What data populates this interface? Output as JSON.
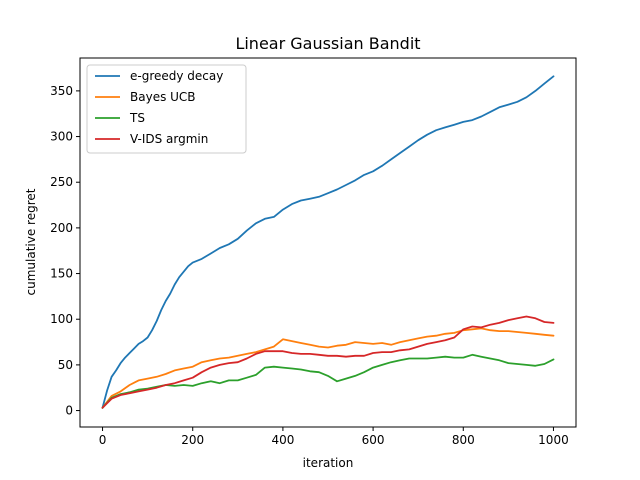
{
  "chart_data": {
    "type": "line",
    "title": "Linear Gaussian Bandit",
    "xlabel": "iteration",
    "ylabel": "cumulative regret",
    "xlim": [
      -50,
      1050
    ],
    "ylim": [
      -18,
      386
    ],
    "xticks": [
      0,
      200,
      400,
      600,
      800,
      1000
    ],
    "yticks": [
      0,
      50,
      100,
      150,
      200,
      250,
      300,
      350
    ],
    "grid": false,
    "legend_position": "top-left",
    "series": [
      {
        "name": "e-greedy decay",
        "color": "#1f77b4",
        "x": [
          0,
          10,
          20,
          30,
          40,
          50,
          60,
          70,
          80,
          90,
          100,
          110,
          120,
          130,
          140,
          150,
          160,
          170,
          180,
          190,
          200,
          220,
          240,
          260,
          280,
          300,
          320,
          340,
          360,
          380,
          400,
          420,
          440,
          460,
          480,
          500,
          520,
          540,
          560,
          580,
          600,
          620,
          640,
          660,
          680,
          700,
          720,
          740,
          760,
          780,
          800,
          820,
          840,
          860,
          880,
          900,
          920,
          940,
          960,
          980,
          1000
        ],
        "y": [
          3,
          22,
          37,
          44,
          52,
          58,
          63,
          68,
          73,
          76,
          80,
          88,
          98,
          110,
          120,
          128,
          138,
          146,
          152,
          158,
          162,
          166,
          172,
          178,
          182,
          188,
          197,
          205,
          210,
          212,
          220,
          226,
          230,
          232,
          234,
          238,
          242,
          247,
          252,
          258,
          262,
          268,
          275,
          282,
          289,
          296,
          302,
          307,
          310,
          313,
          316,
          318,
          322,
          327,
          332,
          335,
          338,
          343,
          350,
          358,
          366
        ]
      },
      {
        "name": "Bayes UCB",
        "color": "#ff7f0e",
        "x": [
          0,
          20,
          40,
          60,
          80,
          100,
          120,
          140,
          160,
          180,
          200,
          220,
          240,
          260,
          280,
          300,
          320,
          340,
          360,
          380,
          400,
          420,
          440,
          460,
          480,
          500,
          520,
          540,
          560,
          580,
          600,
          620,
          640,
          660,
          680,
          700,
          720,
          740,
          760,
          780,
          800,
          820,
          840,
          860,
          880,
          900,
          920,
          940,
          960,
          980,
          1000
        ],
        "y": [
          3,
          16,
          21,
          28,
          33,
          35,
          37,
          40,
          44,
          46,
          48,
          53,
          55,
          57,
          58,
          60,
          62,
          64,
          67,
          70,
          78,
          76,
          74,
          72,
          70,
          69,
          71,
          72,
          75,
          74,
          73,
          74,
          72,
          75,
          77,
          79,
          81,
          82,
          84,
          85,
          88,
          89,
          90,
          88,
          87,
          87,
          86,
          85,
          84,
          83,
          82
        ]
      },
      {
        "name": "TS",
        "color": "#2ca02c",
        "x": [
          0,
          20,
          40,
          60,
          80,
          100,
          120,
          140,
          160,
          180,
          200,
          220,
          240,
          260,
          280,
          300,
          320,
          340,
          360,
          380,
          400,
          420,
          440,
          460,
          480,
          500,
          520,
          540,
          560,
          580,
          600,
          620,
          640,
          660,
          680,
          700,
          720,
          740,
          760,
          780,
          800,
          820,
          840,
          860,
          880,
          900,
          920,
          940,
          960,
          980,
          1000
        ],
        "y": [
          3,
          14,
          18,
          20,
          23,
          24,
          26,
          28,
          27,
          28,
          27,
          30,
          32,
          30,
          33,
          33,
          36,
          39,
          47,
          48,
          47,
          46,
          45,
          43,
          42,
          38,
          32,
          35,
          38,
          42,
          47,
          50,
          53,
          55,
          57,
          57,
          57,
          58,
          59,
          58,
          58,
          61,
          59,
          57,
          55,
          52,
          51,
          50,
          49,
          51,
          56
        ]
      },
      {
        "name": "V-IDS argmin",
        "color": "#d62728",
        "x": [
          0,
          20,
          40,
          60,
          80,
          100,
          120,
          140,
          160,
          180,
          200,
          220,
          240,
          260,
          280,
          300,
          320,
          340,
          360,
          380,
          400,
          420,
          440,
          460,
          480,
          500,
          520,
          540,
          560,
          580,
          600,
          620,
          640,
          660,
          680,
          700,
          720,
          740,
          760,
          780,
          800,
          820,
          840,
          860,
          880,
          900,
          920,
          940,
          960,
          980,
          1000
        ],
        "y": [
          3,
          13,
          17,
          19,
          21,
          23,
          25,
          28,
          30,
          33,
          36,
          42,
          47,
          50,
          52,
          53,
          57,
          62,
          65,
          65,
          65,
          63,
          62,
          62,
          61,
          60,
          60,
          59,
          60,
          60,
          63,
          64,
          64,
          66,
          67,
          70,
          73,
          75,
          77,
          80,
          89,
          92,
          91,
          94,
          96,
          99,
          101,
          103,
          101,
          97,
          96
        ]
      }
    ]
  }
}
